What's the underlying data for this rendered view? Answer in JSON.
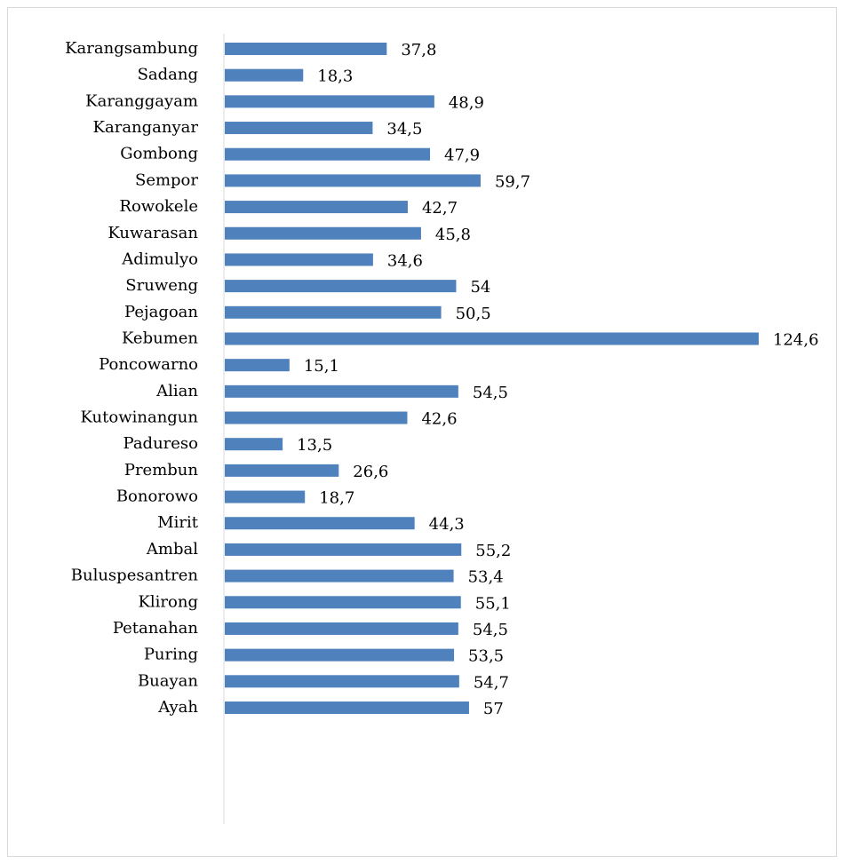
{
  "chart_data": {
    "type": "bar",
    "orientation": "horizontal",
    "color": "#4f81bd",
    "categories": [
      "Karangsambung",
      "Sadang",
      "Karanggayam",
      "Karanganyar",
      "Gombong",
      "Sempor",
      "Rowokele",
      "Kuwarasan",
      "Adimulyo",
      "Sruweng",
      "Pejagoan",
      "Kebumen",
      "Poncowarno",
      "Alian",
      "Kutowinangun",
      "Padureso",
      "Prembun",
      "Bonorowo",
      "Mirit",
      "Ambal",
      "Buluspesantren",
      "Klirong",
      "Petanahan",
      "Puring",
      "Buayan",
      "Ayah"
    ],
    "values": [
      37.8,
      18.3,
      48.9,
      34.5,
      47.9,
      59.7,
      42.7,
      45.8,
      34.6,
      54,
      50.5,
      124.6,
      15.1,
      54.5,
      42.6,
      13.5,
      26.6,
      18.7,
      44.3,
      55.2,
      53.4,
      55.1,
      54.5,
      53.5,
      54.7,
      57
    ],
    "value_labels": [
      "37,8",
      "18,3",
      "48,9",
      "34,5",
      "47,9",
      "59,7",
      "42,7",
      "45,8",
      "34,6",
      "54",
      "50,5",
      "124,6",
      "15,1",
      "54,5",
      "42,6",
      "13,5",
      "26,6",
      "18,7",
      "44,3",
      "55,2",
      "53,4",
      "55,1",
      "54,5",
      "53,5",
      "54,7",
      "57"
    ]
  }
}
